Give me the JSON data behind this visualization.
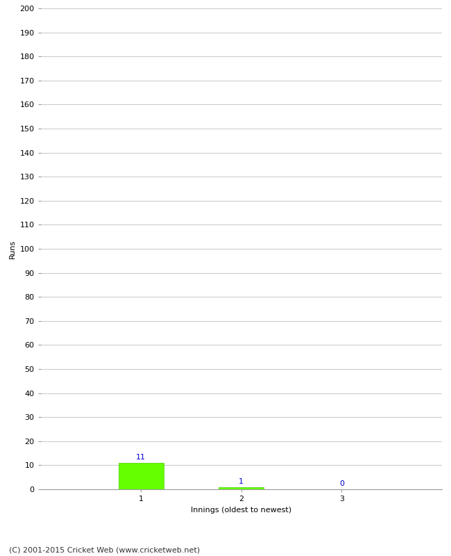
{
  "categories": [
    "1",
    "2",
    "3"
  ],
  "values": [
    11,
    1,
    0
  ],
  "bar_color": "#66ff00",
  "bar_edge_color": "#44cc00",
  "ylabel": "Runs",
  "xlabel": "Innings (oldest to newest)",
  "ylim": [
    0,
    200
  ],
  "ytick_step": 10,
  "label_color": "#0000cc",
  "footer": "(C) 2001-2015 Cricket Web (www.cricketweb.net)",
  "background_color": "#ffffff",
  "grid_color": "#cccccc",
  "label_fontsize": 8,
  "axis_fontsize": 8,
  "footer_fontsize": 8,
  "title_fontsize": 10
}
